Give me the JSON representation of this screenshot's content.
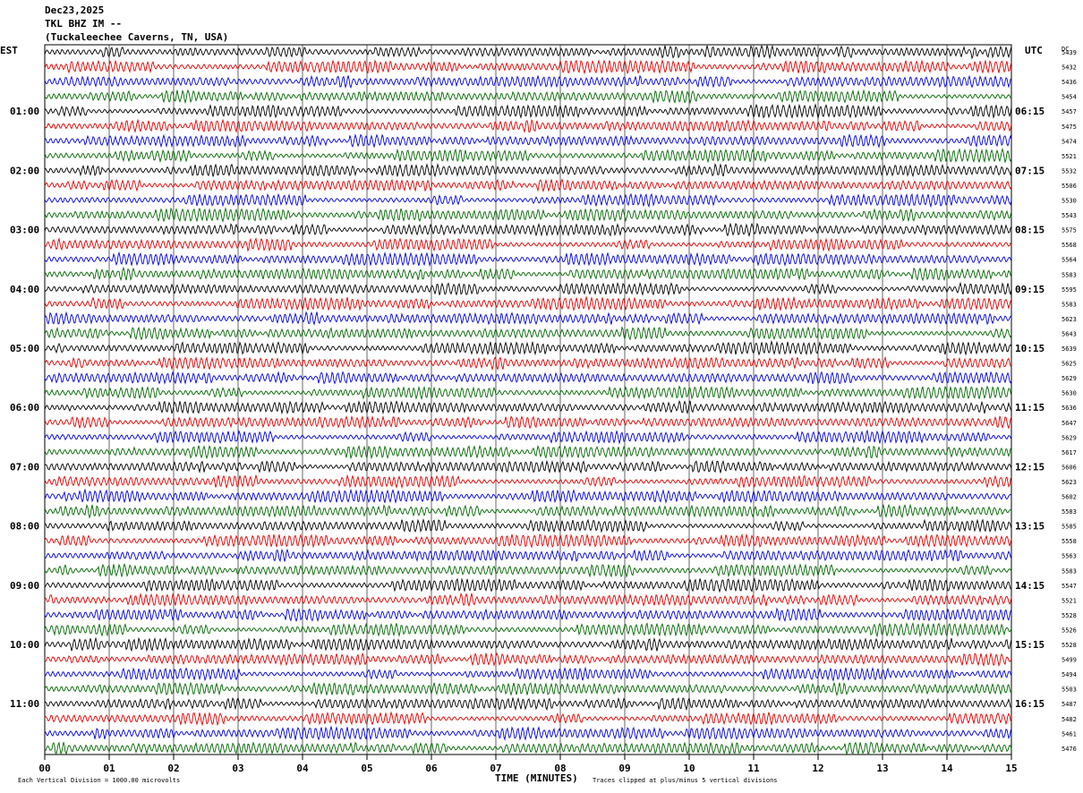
{
  "header": {
    "date": "Dec23,2025",
    "station": "TKL BHZ IM --",
    "location": "(Tuckaleechee Caverns, TN, USA)"
  },
  "chart_data": {
    "type": "line",
    "title": "",
    "left_axis_label": "EST",
    "right_axis_label": "UTC",
    "dc_header": "DC",
    "xlabel": "TIME (MINUTES)",
    "x_ticks": [
      "00",
      "01",
      "02",
      "03",
      "04",
      "05",
      "06",
      "07",
      "08",
      "09",
      "10",
      "11",
      "12",
      "13",
      "14",
      "15"
    ],
    "xlim": [
      0,
      15
    ],
    "row_minutes": 15,
    "row_colors": [
      "#000000",
      "#dd0000",
      "#0000dd",
      "#006600"
    ],
    "left_hour_labels": [
      "01:00",
      "02:00",
      "03:00",
      "04:00",
      "05:00",
      "06:00",
      "07:00",
      "08:00",
      "09:00",
      "10:00",
      "11:00"
    ],
    "right_hour_labels": [
      "06:15",
      "07:15",
      "08:15",
      "09:15",
      "10:15",
      "11:15",
      "12:15",
      "13:15",
      "14:15",
      "15:15",
      "16:15"
    ],
    "dc_offsets": [
      5439,
      5432,
      5436,
      5454,
      5457,
      5475,
      5474,
      5521,
      5532,
      5506,
      5530,
      5543,
      5575,
      5568,
      5564,
      5583,
      5595,
      5583,
      5623,
      5643,
      5639,
      5625,
      5629,
      5630,
      5636,
      5647,
      5629,
      5617,
      5606,
      5623,
      5602,
      5583,
      5585,
      5558,
      5563,
      5583,
      5547,
      5521,
      5528,
      5526,
      5528,
      5499,
      5494,
      5503,
      5487,
      5482,
      5461,
      5476
    ],
    "footer_left": "Each Vertical Division = 1000.00 microvolts",
    "footer_right": "Traces clipped at plus/minus 5 vertical divisions",
    "grid": true
  }
}
